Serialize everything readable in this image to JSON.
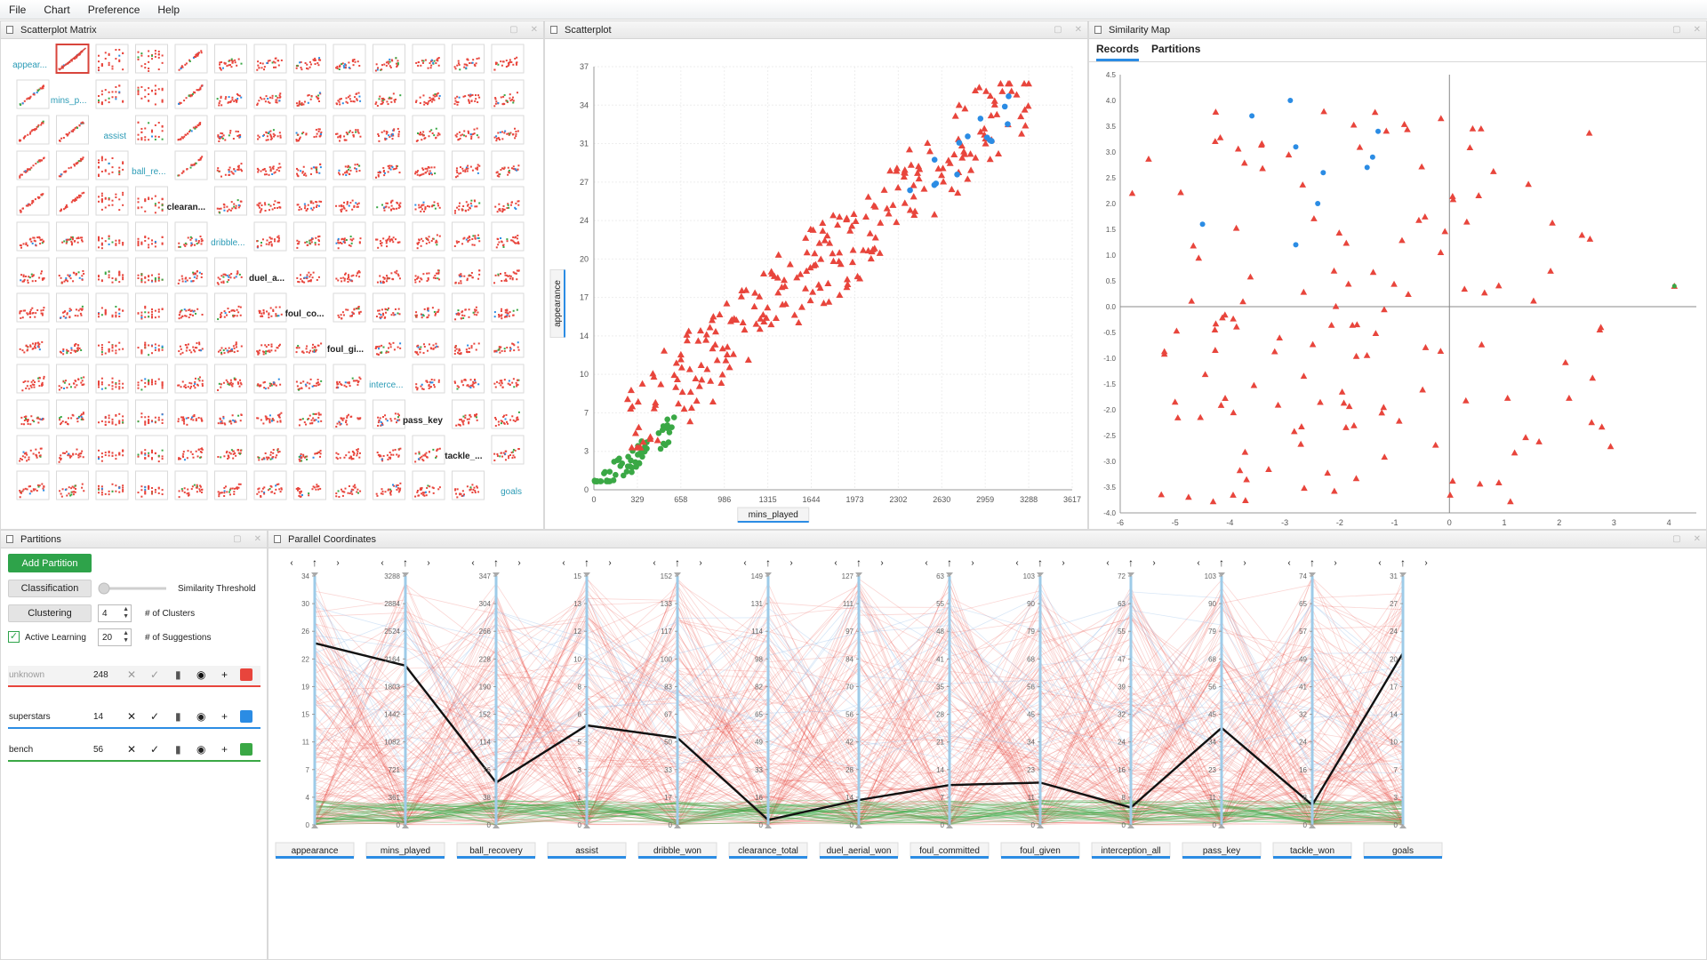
{
  "menu": [
    "File",
    "Chart",
    "Preference",
    "Help"
  ],
  "panels": {
    "spm": "Scatterplot Matrix",
    "scatter": "Scatterplot",
    "similarity": "Similarity Map",
    "partitions": "Partitions",
    "parallel": "Parallel Coordinates"
  },
  "colors": {
    "unknown": "#e8453c",
    "superstars": "#2b8ce4",
    "bench": "#3aa845",
    "accent": "#2b8ce4",
    "axis_label_underline": "#2b8ce4"
  },
  "spm": {
    "labels": [
      "appear...",
      "mins_p...",
      "assist",
      "ball_re...",
      "clearan...",
      "dribble...",
      "duel_a...",
      "foul_co...",
      "foul_gi...",
      "interce...",
      "pass_key",
      "tackle_...",
      "goals"
    ],
    "label_colors": [
      "#2b9bb6",
      "#2b9bb6",
      "#2b9bb6",
      "#2b9bb6",
      "#222222",
      "#2b9bb6",
      "#222222",
      "#222222",
      "#222222",
      "#2b9bb6",
      "#222222",
      "#222222",
      "#2b9bb6"
    ]
  },
  "scatter": {
    "x_label": "mins_played",
    "y_label": "appearance",
    "x_ticks": [
      "0",
      "329",
      "658",
      "986",
      "1315",
      "1644",
      "1973",
      "2302",
      "2630",
      "2959",
      "3288",
      "3617"
    ],
    "y_ticks": [
      "0",
      "3",
      "7",
      "10",
      "14",
      "17",
      "20",
      "24",
      "27",
      "31",
      "34",
      "37"
    ]
  },
  "similarity": {
    "tabs": [
      "Records",
      "Partitions"
    ],
    "active_tab": "Records",
    "x_ticks": [
      "-6",
      "-5",
      "-4",
      "-3",
      "-2",
      "-1",
      "0",
      "1",
      "2",
      "3",
      "4"
    ],
    "y_ticks": [
      "4.5",
      "4.0",
      "3.5",
      "3.0",
      "2.5",
      "2.0",
      "1.5",
      "1.0",
      "0.5",
      "0.0",
      "-0.5",
      "-1.0",
      "-1.5",
      "-2.0",
      "-2.5",
      "-3.0",
      "-3.5",
      "-4.0"
    ]
  },
  "partitions": {
    "add_label": "Add Partition",
    "classification_label": "Classification",
    "similarity_label": "Similarity Threshold",
    "clustering_label": "Clustering",
    "clusters_value": "4",
    "clusters_label": "# of Clusters",
    "active_learning_label": "Active Learning",
    "suggestions_value": "20",
    "suggestions_label": "# of Suggestions",
    "rows": [
      {
        "name": "unknown",
        "count": "248",
        "color": "#e8453c",
        "dimmed": true
      },
      {
        "name": "superstars",
        "count": "14",
        "color": "#2b8ce4",
        "dimmed": false
      },
      {
        "name": "bench",
        "count": "56",
        "color": "#3aa845",
        "dimmed": false
      }
    ]
  },
  "parallel": {
    "axes": [
      {
        "name": "appearance",
        "ticks": [
          "0",
          "4",
          "7",
          "11",
          "15",
          "19",
          "22",
          "26",
          "30",
          "34"
        ]
      },
      {
        "name": "mins_played",
        "ticks": [
          "0",
          "361",
          "721",
          "1082",
          "1442",
          "1803",
          "2164",
          "2524",
          "2884",
          "3288"
        ]
      },
      {
        "name": "ball_recovery",
        "ticks": [
          "0",
          "38",
          "76",
          "114",
          "152",
          "190",
          "228",
          "266",
          "304",
          "347"
        ]
      },
      {
        "name": "assist",
        "ticks": [
          "0",
          "1",
          "3",
          "5",
          "6",
          "8",
          "10",
          "12",
          "13",
          "15"
        ]
      },
      {
        "name": "dribble_won",
        "ticks": [
          "0",
          "17",
          "33",
          "50",
          "67",
          "83",
          "100",
          "117",
          "133",
          "152"
        ]
      },
      {
        "name": "clearance_total",
        "ticks": [
          "0",
          "16",
          "33",
          "49",
          "65",
          "82",
          "98",
          "114",
          "131",
          "149"
        ]
      },
      {
        "name": "duel_aerial_won",
        "ticks": [
          "0",
          "14",
          "28",
          "42",
          "56",
          "70",
          "84",
          "97",
          "111",
          "127"
        ]
      },
      {
        "name": "foul_committed",
        "ticks": [
          "0",
          "7",
          "14",
          "21",
          "28",
          "35",
          "41",
          "48",
          "55",
          "63"
        ]
      },
      {
        "name": "foul_given",
        "ticks": [
          "0",
          "11",
          "23",
          "34",
          "45",
          "56",
          "68",
          "79",
          "90",
          "103"
        ]
      },
      {
        "name": "interception_all",
        "ticks": [
          "0",
          "8",
          "16",
          "24",
          "32",
          "39",
          "47",
          "55",
          "63",
          "72"
        ]
      },
      {
        "name": "pass_key",
        "ticks": [
          "0",
          "11",
          "23",
          "34",
          "45",
          "56",
          "68",
          "79",
          "90",
          "103"
        ]
      },
      {
        "name": "tackle_won",
        "ticks": [
          "0",
          "8",
          "16",
          "24",
          "32",
          "41",
          "49",
          "57",
          "65",
          "74"
        ]
      },
      {
        "name": "goals",
        "ticks": [
          "0",
          "3",
          "7",
          "10",
          "14",
          "17",
          "20",
          "24",
          "27",
          "31"
        ]
      }
    ],
    "highlight": [
      0.73,
      0.64,
      0.17,
      0.4,
      0.35,
      0.02,
      0.1,
      0.16,
      0.17,
      0.07,
      0.39,
      0.08,
      0.69
    ]
  }
}
